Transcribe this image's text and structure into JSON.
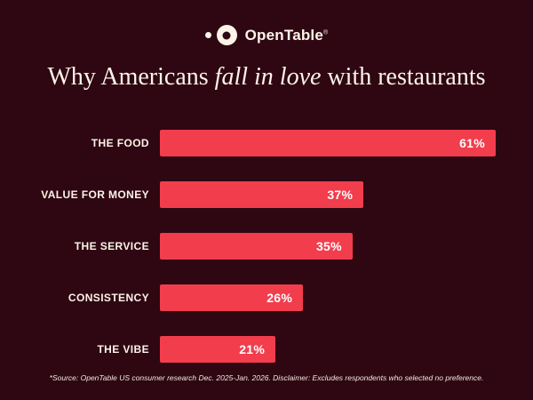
{
  "brand": {
    "name": "OpenTable",
    "registered_mark": "®"
  },
  "title": {
    "prefix": "Why Americans ",
    "italic": "fall in love",
    "suffix": " with restaurants"
  },
  "footer": {
    "source": "*Source: OpenTable US consumer research Dec. 2025-Jan. 2026. Disclaimer: Excludes respondents who selected no preference."
  },
  "colors": {
    "background": "#2e0713",
    "bar": "#f23d4d",
    "text": "#fdf3e7"
  },
  "chart_data": {
    "type": "bar",
    "orientation": "horizontal",
    "title": "Why Americans fall in love with restaurants",
    "categories": [
      "THE FOOD",
      "VALUE FOR MONEY",
      "THE SERVICE",
      "CONSISTENCY",
      "THE VIBE"
    ],
    "values": [
      61,
      37,
      35,
      26,
      21
    ],
    "value_suffix": "%",
    "xlim": [
      0,
      61
    ],
    "grid": false,
    "legend": false,
    "value_labels": "inside-end"
  }
}
